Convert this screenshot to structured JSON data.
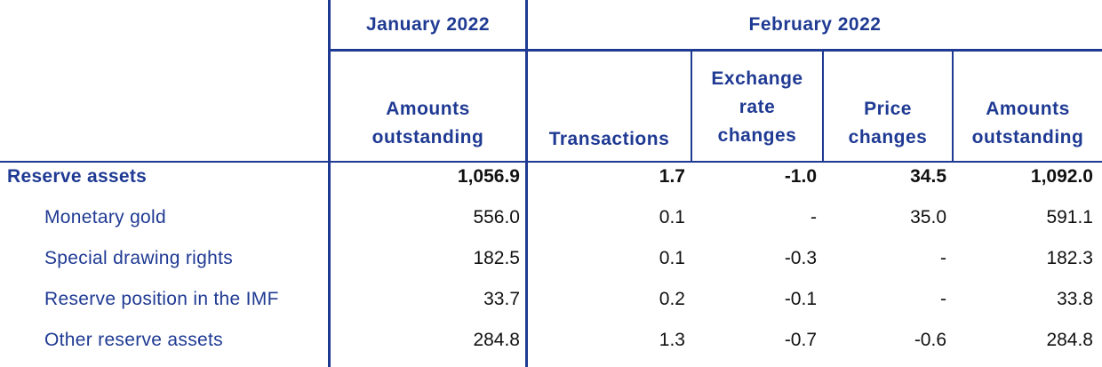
{
  "header": {
    "january": "January 2022",
    "february": "February 2022",
    "cols": [
      "Amounts\noutstanding",
      "Transactions",
      "Exchange\nrate\nchanges",
      "Price\nchanges",
      "Amounts\noutstanding"
    ]
  },
  "rows": [
    {
      "label": "Reserve assets",
      "values": [
        "1,056.9",
        "1.7",
        "-1.0",
        "34.5",
        "1,092.0"
      ]
    },
    {
      "label": "Monetary gold",
      "values": [
        "556.0",
        "0.1",
        "-",
        "35.0",
        "591.1"
      ]
    },
    {
      "label": "Special drawing rights",
      "values": [
        "182.5",
        "0.1",
        "-0.3",
        "-",
        "182.3"
      ]
    },
    {
      "label": "Reserve position in the IMF",
      "values": [
        "33.7",
        "0.2",
        "-0.1",
        "-",
        "33.8"
      ]
    },
    {
      "label": "Other reserve assets",
      "values": [
        "284.8",
        "1.3",
        "-0.7",
        "-0.6",
        "284.8"
      ]
    }
  ]
}
